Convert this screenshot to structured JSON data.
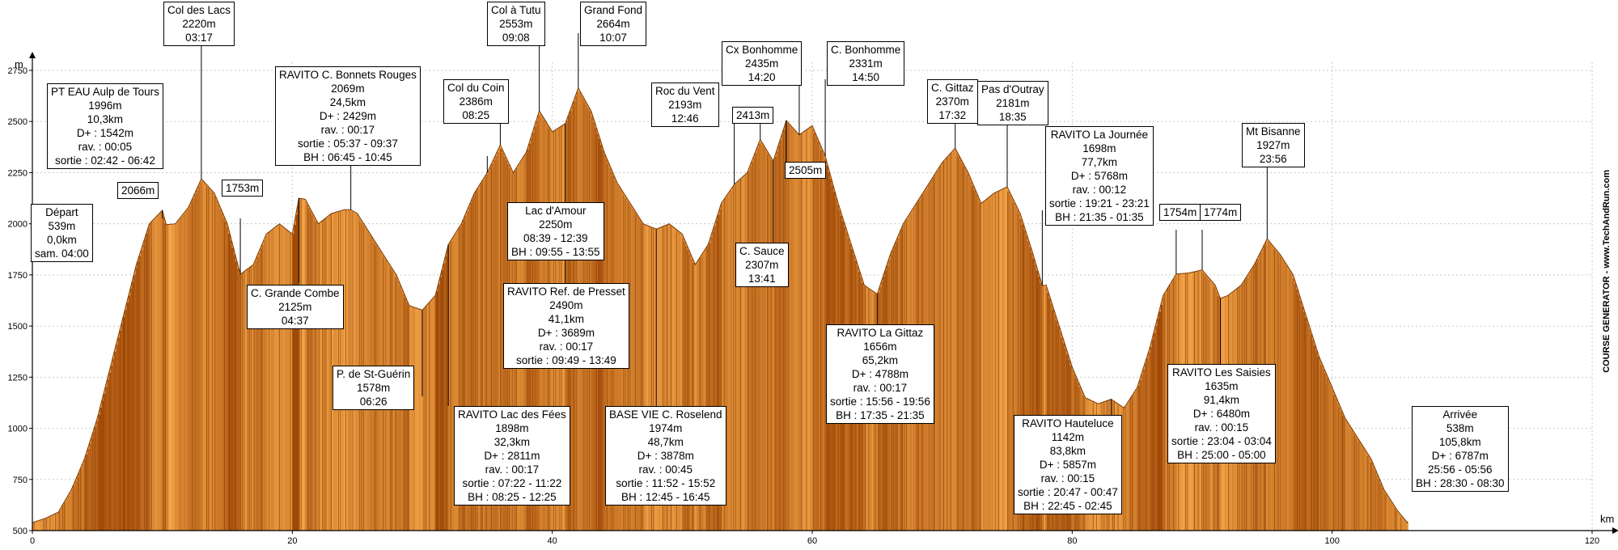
{
  "chart_data": {
    "type": "area",
    "title": "",
    "xlabel": "km",
    "ylabel": "m",
    "xlim": [
      0,
      120
    ],
    "ylim": [
      500,
      2750
    ],
    "x_ticks": [
      0,
      20,
      40,
      60,
      80,
      100,
      120
    ],
    "y_ticks": [
      500,
      750,
      1000,
      1250,
      1500,
      1750,
      2000,
      2250,
      2500,
      2750
    ],
    "grid": true,
    "colors": {
      "fill_light": "#f7a84a",
      "fill_dark": "#b85c0a",
      "stripe": "#8a3f05",
      "grid": "#c8c8c8"
    },
    "profile": [
      [
        0,
        539
      ],
      [
        1,
        560
      ],
      [
        2,
        590
      ],
      [
        3,
        700
      ],
      [
        4,
        850
      ],
      [
        5,
        1050
      ],
      [
        6,
        1300
      ],
      [
        7,
        1550
      ],
      [
        8,
        1800
      ],
      [
        9,
        2000
      ],
      [
        10,
        2066
      ],
      [
        10.3,
        1996
      ],
      [
        11,
        2000
      ],
      [
        12,
        2080
      ],
      [
        13,
        2220
      ],
      [
        14,
        2150
      ],
      [
        15,
        2000
      ],
      [
        16,
        1753
      ],
      [
        17,
        1800
      ],
      [
        18,
        1950
      ],
      [
        19,
        2000
      ],
      [
        20,
        1950
      ],
      [
        20.5,
        2125
      ],
      [
        21,
        2120
      ],
      [
        22,
        2000
      ],
      [
        23,
        2050
      ],
      [
        24,
        2069
      ],
      [
        24.5,
        2069
      ],
      [
        25,
        2050
      ],
      [
        26,
        1950
      ],
      [
        27,
        1850
      ],
      [
        28,
        1750
      ],
      [
        29,
        1600
      ],
      [
        30,
        1578
      ],
      [
        31,
        1650
      ],
      [
        32,
        1898
      ],
      [
        33,
        2000
      ],
      [
        34,
        2150
      ],
      [
        35,
        2250
      ],
      [
        36,
        2386
      ],
      [
        37,
        2250
      ],
      [
        38,
        2350
      ],
      [
        39,
        2553
      ],
      [
        40,
        2450
      ],
      [
        41,
        2490
      ],
      [
        42,
        2664
      ],
      [
        43,
        2550
      ],
      [
        44,
        2350
      ],
      [
        45,
        2200
      ],
      [
        46,
        2100
      ],
      [
        47,
        2000
      ],
      [
        48,
        1974
      ],
      [
        49,
        2000
      ],
      [
        50,
        1950
      ],
      [
        51,
        1800
      ],
      [
        52,
        1900
      ],
      [
        53,
        2100
      ],
      [
        54,
        2193
      ],
      [
        55,
        2250
      ],
      [
        56,
        2413
      ],
      [
        57,
        2307
      ],
      [
        58,
        2505
      ],
      [
        59,
        2435
      ],
      [
        60,
        2480
      ],
      [
        61,
        2331
      ],
      [
        62,
        2100
      ],
      [
        63,
        1900
      ],
      [
        64,
        1700
      ],
      [
        65,
        1656
      ],
      [
        66,
        1850
      ],
      [
        67,
        2000
      ],
      [
        68,
        2100
      ],
      [
        69,
        2200
      ],
      [
        70,
        2300
      ],
      [
        71,
        2370
      ],
      [
        72,
        2250
      ],
      [
        73,
        2100
      ],
      [
        74,
        2150
      ],
      [
        75,
        2181
      ],
      [
        76,
        2050
      ],
      [
        77,
        1850
      ],
      [
        77.7,
        1698
      ],
      [
        78,
        1700
      ],
      [
        79,
        1500
      ],
      [
        80,
        1300
      ],
      [
        81,
        1150
      ],
      [
        82,
        1120
      ],
      [
        83,
        1142
      ],
      [
        84,
        1100
      ],
      [
        85,
        1200
      ],
      [
        86,
        1400
      ],
      [
        87,
        1650
      ],
      [
        88,
        1754
      ],
      [
        89,
        1760
      ],
      [
        90,
        1774
      ],
      [
        91,
        1700
      ],
      [
        91.4,
        1635
      ],
      [
        92,
        1650
      ],
      [
        93,
        1700
      ],
      [
        94,
        1800
      ],
      [
        95,
        1927
      ],
      [
        96,
        1850
      ],
      [
        97,
        1750
      ],
      [
        98,
        1550
      ],
      [
        99,
        1350
      ],
      [
        100,
        1200
      ],
      [
        101,
        1050
      ],
      [
        102,
        950
      ],
      [
        103,
        850
      ],
      [
        104,
        700
      ],
      [
        105,
        600
      ],
      [
        105.8,
        538
      ]
    ],
    "annotations": [
      {
        "x": 0,
        "y": 539,
        "lines": [
          "Départ",
          "539m",
          "0,0km",
          "sam. 04:00"
        ]
      },
      {
        "x": 5.5,
        "y": 2000,
        "lines": [
          "PT EAU Aulp de Tours",
          "1996m",
          "10,3km",
          "D+ : 1542m",
          "rav. : 00:05",
          "sortie : 02:42 - 06:42"
        ]
      },
      {
        "x": 10,
        "y": 2066,
        "lines": [
          "2066m"
        ]
      },
      {
        "x": 13,
        "y": 2220,
        "lines": [
          "Col des Lacs",
          "2220m",
          "03:17"
        ]
      },
      {
        "x": 16,
        "y": 1753,
        "lines": [
          "1753m"
        ]
      },
      {
        "x": 20.5,
        "y": 2125,
        "lines": [
          "C. Grande Combe",
          "2125m",
          "04:37"
        ]
      },
      {
        "x": 24.5,
        "y": 2069,
        "lines": [
          "RAVITO C. Bonnets Rouges",
          "2069m",
          "24,5km",
          "D+ : 2429m",
          "rav. : 00:17",
          "sortie : 05:37 - 09:37",
          "BH : 06:45 - 10:45"
        ]
      },
      {
        "x": 30,
        "y": 1578,
        "lines": [
          "P. de St-Guérin",
          "1578m",
          "06:26"
        ]
      },
      {
        "x": 32,
        "y": 1898,
        "lines": [
          "RAVITO Lac des Fées",
          "1898m",
          "32,3km",
          "D+ : 2811m",
          "rav. : 00:17",
          "sortie : 07:22 - 11:22",
          "BH : 08:25 - 12:25"
        ]
      },
      {
        "x": 35,
        "y": 2250,
        "lines": [
          "Lac d'Amour",
          "2250m",
          "08:39 - 12:39",
          "BH : 09:55 - 13:55"
        ]
      },
      {
        "x": 36,
        "y": 2386,
        "lines": [
          "Col du Coin",
          "2386m",
          "08:25"
        ]
      },
      {
        "x": 39,
        "y": 2553,
        "lines": [
          "Col à Tutu",
          "2553m",
          "09:08"
        ]
      },
      {
        "x": 41,
        "y": 2490,
        "lines": [
          "RAVITO Ref. de Presset",
          "2490m",
          "41,1km",
          "D+ : 3689m",
          "rav. : 00:17",
          "sortie : 09:49 - 13:49"
        ]
      },
      {
        "x": 42,
        "y": 2664,
        "lines": [
          "Grand Fond",
          "2664m",
          "10:07"
        ]
      },
      {
        "x": 48,
        "y": 1974,
        "lines": [
          "BASE VIE C. Roselend",
          "1974m",
          "48,7km",
          "D+ : 3878m",
          "rav. : 00:45",
          "sortie : 11:52 - 15:52",
          "BH : 12:45 - 16:45"
        ]
      },
      {
        "x": 54,
        "y": 2193,
        "lines": [
          "Roc du Vent",
          "2193m",
          "12:46"
        ]
      },
      {
        "x": 56,
        "y": 2413,
        "lines": [
          "2413m"
        ]
      },
      {
        "x": 57,
        "y": 2307,
        "lines": [
          "C. Sauce",
          "2307m",
          "13:41"
        ]
      },
      {
        "x": 58,
        "y": 2505,
        "lines": [
          "2505m"
        ]
      },
      {
        "x": 59,
        "y": 2435,
        "lines": [
          "Cx Bonhomme",
          "2435m",
          "14:20"
        ]
      },
      {
        "x": 61,
        "y": 2331,
        "lines": [
          "C. Bonhomme",
          "2331m",
          "14:50"
        ]
      },
      {
        "x": 65,
        "y": 1656,
        "lines": [
          "RAVITO La Gittaz",
          "1656m",
          "65,2km",
          "D+ : 4788m",
          "rav. : 00:17",
          "sortie : 15:56 - 19:56",
          "BH : 17:35 - 21:35"
        ]
      },
      {
        "x": 71,
        "y": 2370,
        "lines": [
          "C. Gittaz",
          "2370m",
          "17:32"
        ]
      },
      {
        "x": 75,
        "y": 2181,
        "lines": [
          "Pas d'Outray",
          "2181m",
          "18:35"
        ]
      },
      {
        "x": 77.7,
        "y": 1698,
        "lines": [
          "RAVITO La Journée",
          "1698m",
          "77,7km",
          "D+ : 5768m",
          "rav. : 00:12",
          "sortie : 19:21 - 23:21",
          "BH : 21:35 - 01:35"
        ]
      },
      {
        "x": 83,
        "y": 1142,
        "lines": [
          "RAVITO Hauteluce",
          "1142m",
          "83,8km",
          "D+ : 5857m",
          "rav. : 00:15",
          "sortie : 20:47 - 00:47",
          "BH : 22:45 - 02:45"
        ]
      },
      {
        "x": 88,
        "y": 1754,
        "lines": [
          "1754m"
        ]
      },
      {
        "x": 90,
        "y": 1774,
        "lines": [
          "1774m"
        ]
      },
      {
        "x": 91.4,
        "y": 1635,
        "lines": [
          "RAVITO Les Saisies",
          "1635m",
          "91,4km",
          "D+ : 6480m",
          "rav. : 00:15",
          "sortie : 23:04 - 03:04",
          "BH : 25:00 - 05:00"
        ]
      },
      {
        "x": 95,
        "y": 1927,
        "lines": [
          "Mt Bisanne",
          "1927m",
          "23:56"
        ]
      },
      {
        "x": 105.8,
        "y": 538,
        "lines": [
          "Arrivée",
          "538m",
          "105,8km",
          "D+ : 6787m",
          "25:56 - 05:56",
          "BH : 28:30 - 08:30"
        ]
      }
    ],
    "watermark": "COURSE GENERATOR - www.TechAndRun.com"
  }
}
